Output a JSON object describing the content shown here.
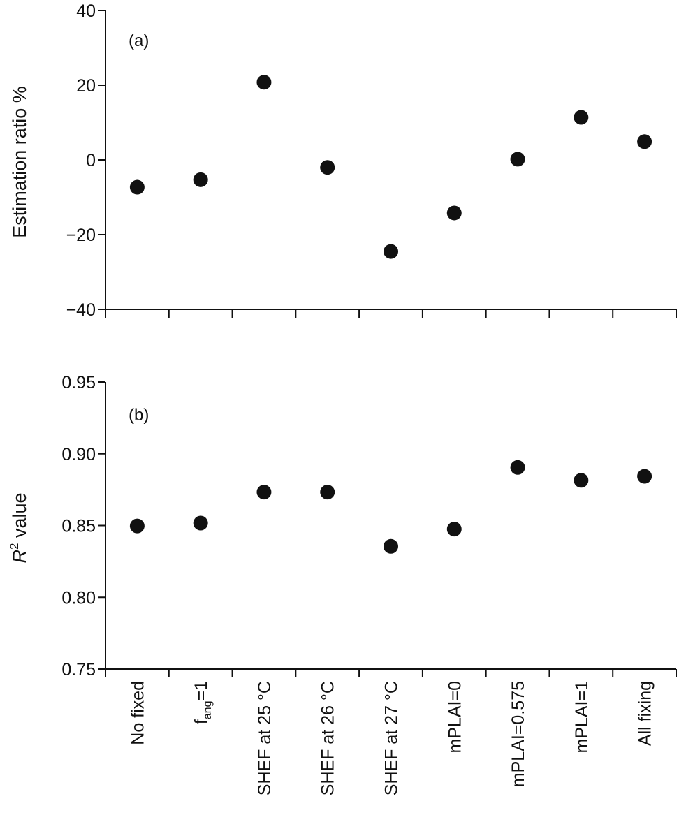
{
  "chart_data": [
    {
      "type": "scatter",
      "panel_label": "(a)",
      "ylabel": "Estimation ratio %",
      "ylim": [
        -40,
        40
      ],
      "yticks": [
        40,
        20,
        0,
        -20,
        -40
      ],
      "ytick_labels": [
        "40",
        "20",
        "0",
        "−20",
        "−40"
      ],
      "categories": [
        "No fixed",
        "fang=1",
        "SHEF at 25 °C",
        "SHEF at 26 °C",
        "SHEF at 27 °C",
        "mPLAI=0",
        "mPLAI=0.575",
        "mPLAI=1",
        "All fixing"
      ],
      "values": [
        -7.3,
        -5.3,
        20.8,
        -2.0,
        -24.5,
        -14.2,
        0.2,
        11.4,
        4.9
      ],
      "point_color": "#111111"
    },
    {
      "type": "scatter",
      "panel_label": "(b)",
      "ylabel_main": "R",
      "ylabel_sup": "2",
      "ylabel_rest": " value",
      "ylim": [
        0.75,
        0.95
      ],
      "yticks": [
        0.95,
        0.9,
        0.85,
        0.8,
        0.75
      ],
      "ytick_labels": [
        "0.95",
        "0.90",
        "0.85",
        "0.80",
        "0.75"
      ],
      "categories": [
        "No fixed",
        "fang=1",
        "SHEF at 25 °C",
        "SHEF at 26 °C",
        "SHEF at 27 °C",
        "mPLAI=0",
        "mPLAI=0.575",
        "mPLAI=1",
        "All fixing"
      ],
      "category_labels": [
        {
          "main": "No fixed"
        },
        {
          "main": "f",
          "sub": "ang",
          "rest": "=1"
        },
        {
          "main": "SHEF at 25 °C"
        },
        {
          "main": "SHEF at 26 °C"
        },
        {
          "main": "SHEF at 27 °C"
        },
        {
          "main": "mPLAI=0"
        },
        {
          "main": "mPLAI=0.575"
        },
        {
          "main": "mPLAI=1"
        },
        {
          "main": "All fixing"
        }
      ],
      "values": [
        0.8497,
        0.8517,
        0.8733,
        0.8733,
        0.8355,
        0.8475,
        0.8905,
        0.8815,
        0.8843
      ],
      "point_color": "#111111"
    }
  ]
}
